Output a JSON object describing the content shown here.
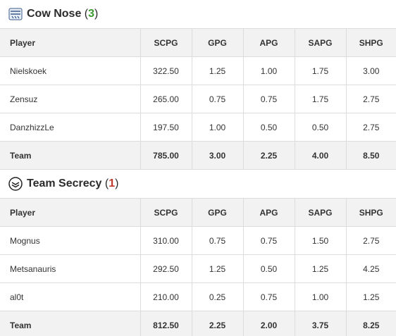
{
  "columns": [
    "Player",
    "SCPG",
    "GPG",
    "APG",
    "SAPG",
    "SHPG"
  ],
  "teams": [
    {
      "name": "Cow Nose",
      "score": "3",
      "score_color": "#3a9a2e",
      "logo_icon": "cow-nose-logo-icon",
      "players": [
        {
          "player": "Nielskoek",
          "scpg": "322.50",
          "gpg": "1.25",
          "apg": "1.00",
          "sapg": "1.75",
          "shpg": "3.00"
        },
        {
          "player": "Zensuz",
          "scpg": "265.00",
          "gpg": "0.75",
          "apg": "0.75",
          "sapg": "1.75",
          "shpg": "2.75"
        },
        {
          "player": "DanzhizzLe",
          "scpg": "197.50",
          "gpg": "1.00",
          "apg": "0.50",
          "sapg": "0.50",
          "shpg": "2.75"
        }
      ],
      "total": {
        "player": "Team",
        "scpg": "785.00",
        "gpg": "3.00",
        "apg": "2.25",
        "sapg": "4.00",
        "shpg": "8.50"
      }
    },
    {
      "name": "Team Secrecy",
      "score": "1",
      "score_color": "#c0392b",
      "logo_icon": "team-secrecy-logo-icon",
      "players": [
        {
          "player": "Mognus",
          "scpg": "310.00",
          "gpg": "0.75",
          "apg": "0.75",
          "sapg": "1.50",
          "shpg": "2.75"
        },
        {
          "player": "Metsanauris",
          "scpg": "292.50",
          "gpg": "1.25",
          "apg": "0.50",
          "sapg": "1.25",
          "shpg": "4.25"
        },
        {
          "player": "al0t",
          "scpg": "210.00",
          "gpg": "0.25",
          "apg": "0.75",
          "sapg": "1.00",
          "shpg": "1.25"
        }
      ],
      "total": {
        "player": "Team",
        "scpg": "812.50",
        "gpg": "2.25",
        "apg": "2.00",
        "sapg": "3.75",
        "shpg": "8.25"
      }
    }
  ]
}
